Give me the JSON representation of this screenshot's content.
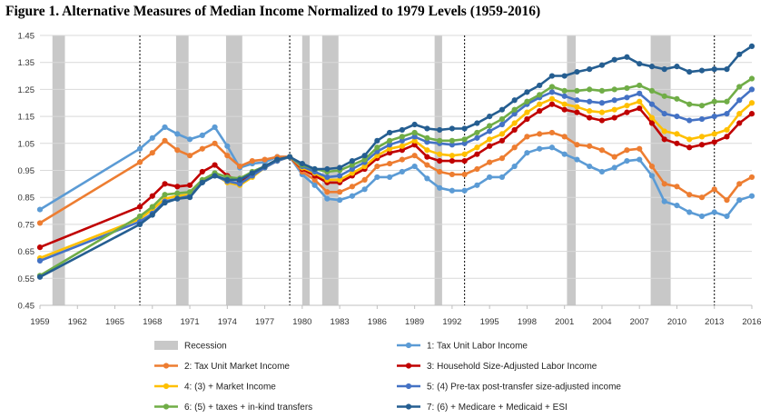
{
  "figure_title": "Figure 1. Alternative Measures of Median Income Normalized to 1979 Levels (1959-2016)",
  "chart_data": {
    "type": "line",
    "title": "Figure 1. Alternative Measures of Median Income Normalized to 1979 Levels (1959-2016)",
    "xlabel": "",
    "ylabel": "",
    "xlim": [
      1959,
      2016
    ],
    "ylim": [
      0.45,
      1.45
    ],
    "x_ticks": [
      1959,
      1962,
      1965,
      1968,
      1971,
      1974,
      1977,
      1980,
      1983,
      1986,
      1989,
      1992,
      1995,
      1998,
      2001,
      2004,
      2007,
      2010,
      2013,
      2016
    ],
    "x_tick_labels": [
      "1959",
      "1962",
      "1965",
      "1968",
      "1971",
      "1974",
      "1977",
      "1980",
      "1983",
      "1986",
      "1989",
      "1992",
      "1995",
      "1998",
      "2001",
      "2004",
      "2007",
      "2010",
      "2013",
      "2016"
    ],
    "y_ticks": [
      0.45,
      0.55,
      0.65,
      0.75,
      0.85,
      0.95,
      1.05,
      1.15,
      1.25,
      1.35,
      1.45
    ],
    "y_tick_labels": [
      "0.45",
      "0.55",
      "0.65",
      "0.75",
      "0.85",
      "0.95",
      "1.05",
      "1.15",
      "1.25",
      "1.35",
      "1.45"
    ],
    "grid": "horizontal",
    "recessions": [
      [
        1960,
        1961
      ],
      [
        1969.9,
        1970.9
      ],
      [
        1973.9,
        1975.2
      ],
      [
        1980,
        1980.6
      ],
      [
        1981.6,
        1982.9
      ],
      [
        1990.6,
        1991.2
      ],
      [
        2001.2,
        2001.9
      ],
      [
        2007.9,
        2009.5
      ]
    ],
    "dashed_vlines": [
      1967,
      1979,
      1993,
      2013
    ],
    "legend_position": "bottom",
    "legend": [
      {
        "label": "Recession",
        "kind": "box",
        "color": "#c8c8c8"
      },
      {
        "label": "1: Tax Unit Labor Income",
        "kind": "line",
        "color": "#5b9bd5"
      },
      {
        "label": "2: Tax Unit Market Income",
        "kind": "line",
        "color": "#ed7d31"
      },
      {
        "label": "3: Household Size-Adjusted Labor Income",
        "kind": "line",
        "color": "#c00000"
      },
      {
        "label": "4: (3)  + Market Income",
        "kind": "line",
        "color": "#ffc000"
      },
      {
        "label": "5: (4) Pre-tax post-transfer size-adjusted income",
        "kind": "line",
        "color": "#4472c4"
      },
      {
        "label": "6: (5) + taxes + in-kind transfers",
        "kind": "line",
        "color": "#70ad47"
      },
      {
        "label": "7: (6) + Medicare + Medicaid + ESI",
        "kind": "line",
        "color": "#255e91"
      }
    ],
    "x": [
      1959,
      1967,
      1968,
      1969,
      1970,
      1971,
      1972,
      1973,
      1974,
      1975,
      1976,
      1977,
      1978,
      1979,
      1980,
      1981,
      1982,
      1983,
      1984,
      1985,
      1986,
      1987,
      1988,
      1989,
      1990,
      1991,
      1992,
      1993,
      1994,
      1995,
      1996,
      1997,
      1998,
      1999,
      2000,
      2001,
      2002,
      2003,
      2004,
      2005,
      2006,
      2007,
      2008,
      2009,
      2010,
      2011,
      2012,
      2013,
      2014,
      2015,
      2016
    ],
    "series": [
      {
        "name": "1: Tax Unit Labor Income",
        "color": "#5b9bd5",
        "values": [
          0.805,
          1.03,
          1.07,
          1.11,
          1.085,
          1.065,
          1.08,
          1.11,
          1.04,
          0.96,
          0.975,
          0.98,
          1.0,
          1.0,
          0.935,
          0.895,
          0.845,
          0.84,
          0.855,
          0.88,
          0.925,
          0.925,
          0.945,
          0.965,
          0.92,
          0.885,
          0.875,
          0.875,
          0.895,
          0.925,
          0.925,
          0.965,
          1.015,
          1.03,
          1.035,
          1.01,
          0.99,
          0.965,
          0.945,
          0.96,
          0.985,
          0.99,
          0.93,
          0.835,
          0.82,
          0.795,
          0.78,
          0.795,
          0.78,
          0.84,
          0.855
        ]
      },
      {
        "name": "2: Tax Unit Market Income",
        "color": "#ed7d31",
        "values": [
          0.755,
          0.98,
          1.015,
          1.06,
          1.025,
          1.005,
          1.03,
          1.05,
          1.005,
          0.965,
          0.985,
          0.99,
          1.0,
          1.0,
          0.945,
          0.915,
          0.87,
          0.87,
          0.89,
          0.915,
          0.965,
          0.975,
          0.99,
          1.005,
          0.97,
          0.945,
          0.935,
          0.935,
          0.955,
          0.98,
          0.995,
          1.035,
          1.075,
          1.085,
          1.09,
          1.075,
          1.045,
          1.04,
          1.025,
          1.0,
          1.025,
          1.03,
          0.965,
          0.9,
          0.89,
          0.86,
          0.85,
          0.88,
          0.84,
          0.9,
          0.925
        ]
      },
      {
        "name": "3: Household Size-Adjusted Labor Income",
        "color": "#c00000",
        "values": [
          0.665,
          0.815,
          0.855,
          0.9,
          0.89,
          0.895,
          0.945,
          0.97,
          0.93,
          0.91,
          0.935,
          0.965,
          0.99,
          1.0,
          0.955,
          0.93,
          0.905,
          0.905,
          0.93,
          0.955,
          0.995,
          1.015,
          1.025,
          1.045,
          1.0,
          0.985,
          0.985,
          0.985,
          1.01,
          1.04,
          1.06,
          1.1,
          1.14,
          1.17,
          1.195,
          1.175,
          1.165,
          1.145,
          1.135,
          1.145,
          1.165,
          1.18,
          1.125,
          1.065,
          1.05,
          1.035,
          1.045,
          1.055,
          1.075,
          1.125,
          1.16
        ]
      },
      {
        "name": "4: (3)  + Market Income",
        "color": "#ffc000",
        "values": [
          0.625,
          0.77,
          0.805,
          0.845,
          0.855,
          0.86,
          0.91,
          0.935,
          0.905,
          0.895,
          0.925,
          0.96,
          0.985,
          1.0,
          0.96,
          0.94,
          0.915,
          0.915,
          0.94,
          0.965,
          1.005,
          1.03,
          1.04,
          1.06,
          1.025,
          1.01,
          1.005,
          1.01,
          1.035,
          1.065,
          1.085,
          1.125,
          1.165,
          1.195,
          1.215,
          1.195,
          1.185,
          1.17,
          1.165,
          1.175,
          1.19,
          1.205,
          1.145,
          1.095,
          1.085,
          1.065,
          1.075,
          1.085,
          1.1,
          1.16,
          1.2
        ]
      },
      {
        "name": "5: (4) Pre-tax post-transfer size-adjusted income",
        "color": "#4472c4",
        "values": [
          0.615,
          0.76,
          0.79,
          0.835,
          0.845,
          0.855,
          0.905,
          0.93,
          0.91,
          0.9,
          0.93,
          0.96,
          0.985,
          1.0,
          0.965,
          0.945,
          0.925,
          0.93,
          0.955,
          0.98,
          1.02,
          1.045,
          1.06,
          1.075,
          1.055,
          1.05,
          1.045,
          1.05,
          1.07,
          1.095,
          1.12,
          1.16,
          1.195,
          1.22,
          1.24,
          1.225,
          1.21,
          1.205,
          1.2,
          1.21,
          1.22,
          1.235,
          1.195,
          1.16,
          1.15,
          1.135,
          1.14,
          1.15,
          1.16,
          1.21,
          1.25
        ]
      },
      {
        "name": "6: (5) + taxes + in-kind transfers",
        "color": "#70ad47",
        "values": [
          0.56,
          0.78,
          0.815,
          0.86,
          0.865,
          0.87,
          0.915,
          0.94,
          0.925,
          0.92,
          0.945,
          0.965,
          0.99,
          1.0,
          0.97,
          0.955,
          0.945,
          0.95,
          0.97,
          0.99,
          1.035,
          1.06,
          1.075,
          1.09,
          1.07,
          1.06,
          1.06,
          1.065,
          1.09,
          1.115,
          1.14,
          1.175,
          1.205,
          1.23,
          1.26,
          1.245,
          1.245,
          1.25,
          1.245,
          1.25,
          1.255,
          1.265,
          1.245,
          1.225,
          1.215,
          1.195,
          1.19,
          1.205,
          1.205,
          1.26,
          1.29
        ]
      },
      {
        "name": "7: (6) + Medicare + Medicaid + ESI",
        "color": "#255e91",
        "values": [
          0.555,
          0.75,
          0.785,
          0.83,
          0.845,
          0.85,
          0.905,
          0.93,
          0.915,
          0.915,
          0.94,
          0.965,
          0.99,
          1.0,
          0.975,
          0.955,
          0.955,
          0.96,
          0.985,
          1.005,
          1.06,
          1.09,
          1.1,
          1.12,
          1.105,
          1.1,
          1.105,
          1.105,
          1.125,
          1.15,
          1.175,
          1.21,
          1.24,
          1.265,
          1.3,
          1.3,
          1.315,
          1.325,
          1.34,
          1.36,
          1.37,
          1.345,
          1.335,
          1.325,
          1.335,
          1.315,
          1.32,
          1.325,
          1.325,
          1.38,
          1.41
        ]
      }
    ]
  }
}
